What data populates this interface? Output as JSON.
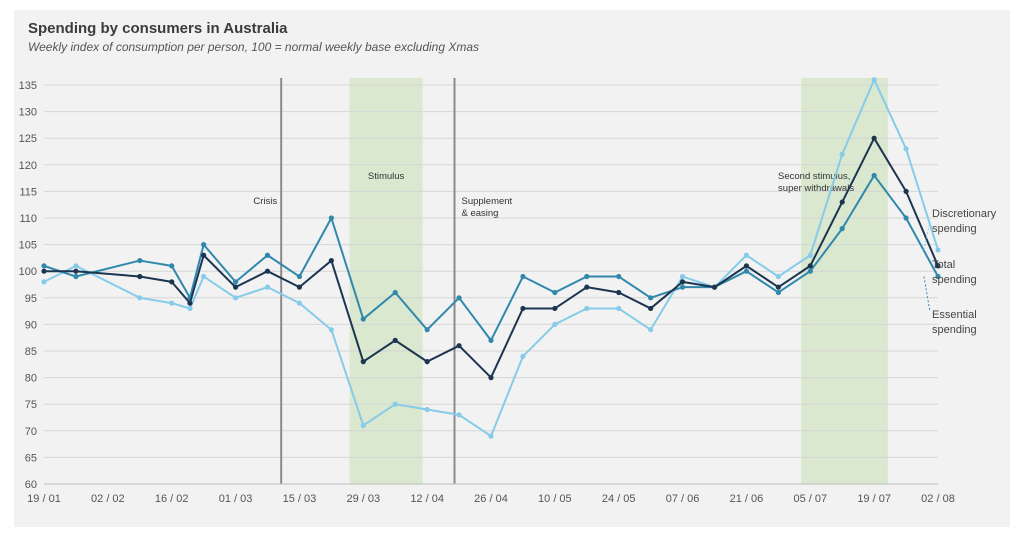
{
  "chart_data": {
    "type": "line",
    "title": "Spending by consumers in Australia",
    "subtitle": "Weekly index of consumption per person, 100 = normal weekly base excluding Xmas",
    "ylim": [
      60,
      135
    ],
    "y_ticks": [
      60,
      65,
      70,
      75,
      80,
      85,
      90,
      95,
      100,
      105,
      110,
      115,
      120,
      125,
      130,
      135
    ],
    "x_tick_labels": [
      "19 / 01",
      "02 / 02",
      "16 / 02",
      "01 / 03",
      "15 / 03",
      "29 / 03",
      "12 / 04",
      "26 / 04",
      "10 / 05",
      "24 / 05",
      "07 / 06",
      "21 / 06",
      "05 / 07",
      "19 / 07",
      "02 / 08"
    ],
    "x_dates": [
      "19/01",
      "26/01",
      "09/02",
      "16/02",
      "20/02",
      "23/02",
      "01/03",
      "08/03",
      "15/03",
      "22/03",
      "29/03",
      "05/04",
      "12/04",
      "19/04",
      "26/04",
      "03/05",
      "10/05",
      "17/05",
      "24/05",
      "31/05",
      "07/06",
      "14/06",
      "21/06",
      "28/06",
      "05/07",
      "12/07",
      "19/07",
      "26/07",
      "02/08"
    ],
    "series": [
      {
        "name": "Discretionary spending",
        "color": "#86cbea",
        "values": [
          98,
          101,
          95,
          94,
          93,
          99,
          95,
          97,
          94,
          89,
          71,
          75,
          74,
          73,
          69,
          84,
          90,
          93,
          93,
          89,
          99,
          97,
          103,
          99,
          103,
          122,
          136,
          123,
          104
        ]
      },
      {
        "name": "Total spending",
        "color": "#1c3550",
        "values": [
          100,
          100,
          99,
          98,
          94,
          103,
          97,
          100,
          97,
          102,
          83,
          87,
          83,
          86,
          80,
          93,
          93,
          97,
          96,
          93,
          98,
          97,
          101,
          97,
          101,
          113,
          125,
          115,
          101
        ]
      },
      {
        "name": "Essential spending",
        "color": "#3088ac",
        "values": [
          101,
          99,
          102,
          101,
          95,
          105,
          98,
          103,
          99,
          110,
          91,
          96,
          89,
          95,
          87,
          99,
          96,
          99,
          99,
          95,
          97,
          97,
          100,
          96,
          100,
          108,
          118,
          110,
          99
        ]
      }
    ],
    "shaded_periods": [
      {
        "label": "Stimulus",
        "start": "26/03",
        "end": "11/04"
      },
      {
        "label": "",
        "start": "03/07",
        "end": "22/07"
      }
    ],
    "event_lines": [
      {
        "label_lines": [
          "Crisis"
        ],
        "date": "11/03"
      },
      {
        "label_lines": [
          "Supplement",
          "& easing"
        ],
        "date": "18/04"
      }
    ],
    "annotations": [
      {
        "label_lines": [
          "Second stimulus,",
          "super withdrawals"
        ],
        "date": "01/07"
      }
    ],
    "legend_labels": [
      {
        "series": 0,
        "lines": [
          "Discretionary",
          "spending"
        ]
      },
      {
        "series": 1,
        "lines": [
          "Total",
          "spending"
        ]
      },
      {
        "series": 2,
        "lines": [
          "Essential",
          "spending"
        ]
      }
    ],
    "colors": {
      "shade": "#d9e8cf",
      "event_line": "#8a8a8a",
      "grid": "#d6d6d6"
    }
  }
}
